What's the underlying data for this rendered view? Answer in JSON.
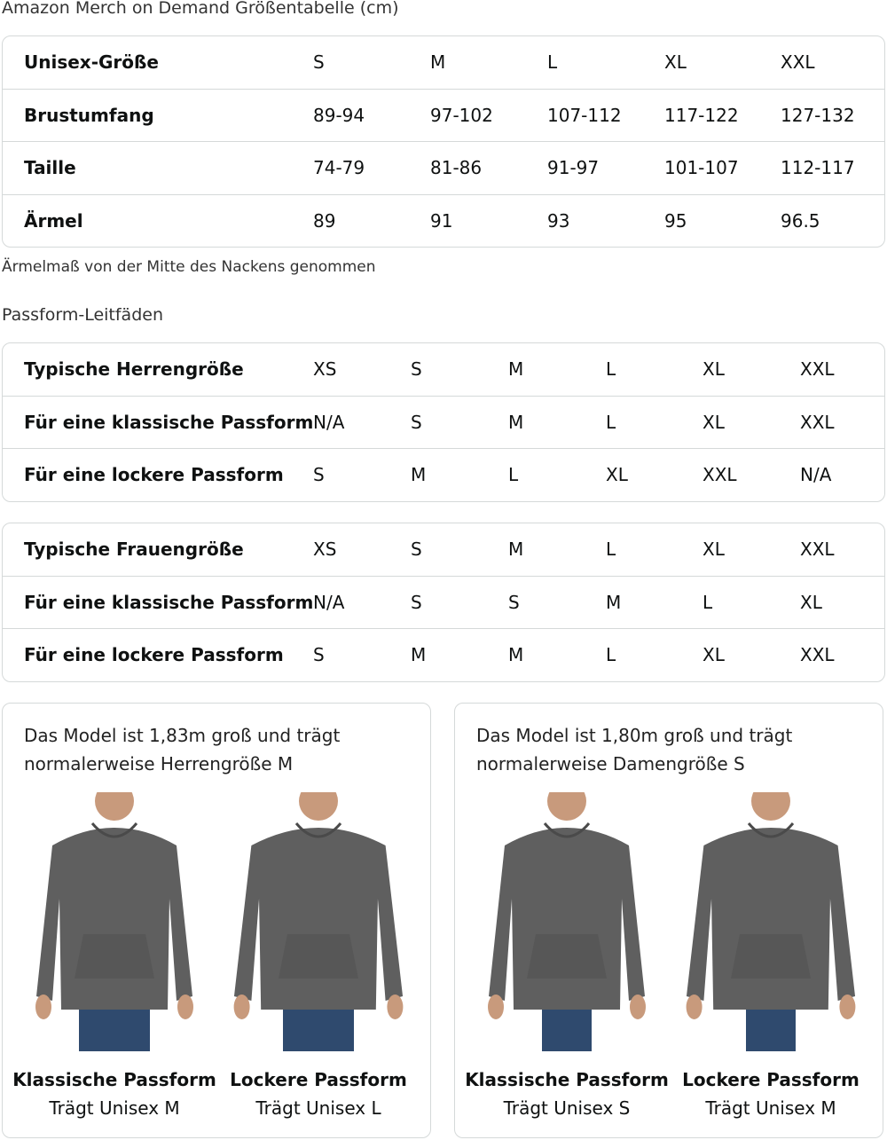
{
  "title": "Amazon Merch on Demand Größentabelle (cm)",
  "size_table": {
    "rows": [
      [
        "Unisex-Größe",
        "S",
        "M",
        "L",
        "XL",
        "XXL"
      ],
      [
        "Brustumfang",
        "89-94",
        "97-102",
        "107-112",
        "117-122",
        "127-132"
      ],
      [
        "Taille",
        "74-79",
        "81-86",
        "91-97",
        "101-107",
        "112-117"
      ],
      [
        "Ärmel",
        "89",
        "91",
        "93",
        "95",
        "96.5"
      ]
    ]
  },
  "note": "Ärmelmaß von der Mitte des Nackens genommen",
  "fit_heading": "Passform-Leitfäden",
  "men_table": {
    "rows": [
      [
        "Typische Herrengröße",
        "XS",
        "S",
        "M",
        "L",
        "XL",
        "XXL"
      ],
      [
        "Für eine klassische Passform",
        "N/A",
        "S",
        "M",
        "L",
        "XL",
        "XXL"
      ],
      [
        "Für eine lockere Passform",
        "S",
        "M",
        "L",
        "XL",
        "XXL",
        "N/A"
      ]
    ]
  },
  "women_table": {
    "rows": [
      [
        "Typische Frauengröße",
        "XS",
        "S",
        "M",
        "L",
        "XL",
        "XXL"
      ],
      [
        "Für eine klassische Passform",
        "N/A",
        "S",
        "S",
        "M",
        "L",
        "XL"
      ],
      [
        "Für eine lockere Passform",
        "S",
        "M",
        "M",
        "L",
        "XL",
        "XXL"
      ]
    ]
  },
  "cards": [
    {
      "line1": "Das Model ist 1,83m groß und trägt",
      "line2": "normalerweise Herrengröße M",
      "figures": [
        {
          "fit": "Klassische Passform",
          "wears": "Trägt Unisex M"
        },
        {
          "fit": "Lockere Passform",
          "wears": "Trägt Unisex L"
        }
      ]
    },
    {
      "line1": "Das Model ist 1,80m groß und trägt",
      "line2": "normalerweise Damengröße S",
      "figures": [
        {
          "fit": "Klassische Passform",
          "wears": "Trägt Unisex S"
        },
        {
          "fit": "Lockere Passform",
          "wears": "Trägt Unisex M"
        }
      ]
    }
  ],
  "colors": {
    "hoodie": "#5f5f5f",
    "jeans": "#2f4a6e",
    "skin": "#c89a7c",
    "border": "#d5d9d9"
  }
}
